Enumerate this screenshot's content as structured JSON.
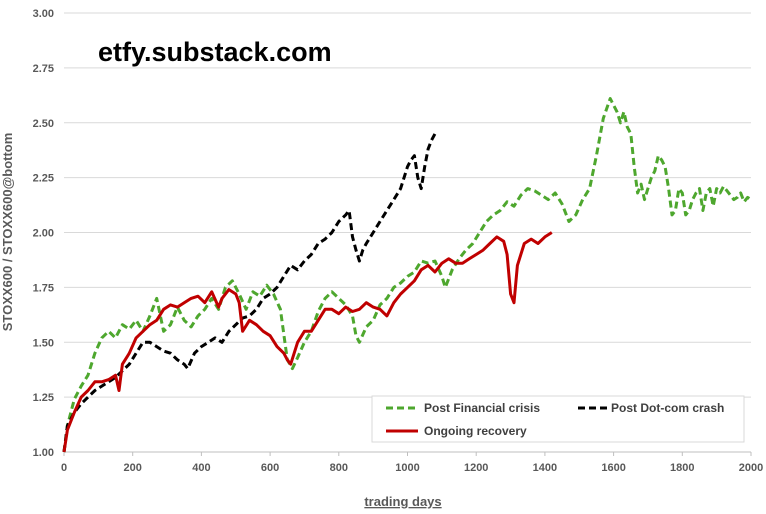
{
  "chart_data": {
    "type": "line",
    "watermark": "etfy.substack.com",
    "xlabel": "trading days",
    "ylabel": "STOXX600 / STOXX600@bottom",
    "xlim": [
      0,
      2000
    ],
    "ylim": [
      1.0,
      3.0
    ],
    "x_ticks": [
      "0",
      "200",
      "400",
      "600",
      "800",
      "1000",
      "1200",
      "1400",
      "1600",
      "1800",
      "2000"
    ],
    "y_ticks": [
      "1.00",
      "1.25",
      "1.50",
      "1.75",
      "2.00",
      "2.25",
      "2.50",
      "2.75",
      "3.00"
    ],
    "grid": "horizontal",
    "legend_position": "bottom-right",
    "series": [
      {
        "name": "Post Financial crisis",
        "color": "#4ea72e",
        "style": "dashed",
        "points": [
          [
            0,
            1.0
          ],
          [
            10,
            1.12
          ],
          [
            30,
            1.24
          ],
          [
            50,
            1.3
          ],
          [
            70,
            1.35
          ],
          [
            90,
            1.45
          ],
          [
            110,
            1.52
          ],
          [
            130,
            1.55
          ],
          [
            150,
            1.52
          ],
          [
            170,
            1.58
          ],
          [
            190,
            1.56
          ],
          [
            210,
            1.6
          ],
          [
            230,
            1.55
          ],
          [
            250,
            1.62
          ],
          [
            270,
            1.7
          ],
          [
            290,
            1.55
          ],
          [
            310,
            1.58
          ],
          [
            330,
            1.66
          ],
          [
            350,
            1.6
          ],
          [
            370,
            1.57
          ],
          [
            390,
            1.62
          ],
          [
            410,
            1.65
          ],
          [
            430,
            1.7
          ],
          [
            450,
            1.65
          ],
          [
            470,
            1.75
          ],
          [
            490,
            1.78
          ],
          [
            510,
            1.72
          ],
          [
            530,
            1.65
          ],
          [
            550,
            1.73
          ],
          [
            570,
            1.71
          ],
          [
            590,
            1.76
          ],
          [
            610,
            1.72
          ],
          [
            630,
            1.65
          ],
          [
            650,
            1.42
          ],
          [
            665,
            1.38
          ],
          [
            680,
            1.43
          ],
          [
            700,
            1.5
          ],
          [
            720,
            1.55
          ],
          [
            740,
            1.64
          ],
          [
            760,
            1.7
          ],
          [
            780,
            1.73
          ],
          [
            800,
            1.7
          ],
          [
            820,
            1.67
          ],
          [
            840,
            1.62
          ],
          [
            850,
            1.53
          ],
          [
            860,
            1.5
          ],
          [
            880,
            1.57
          ],
          [
            900,
            1.6
          ],
          [
            920,
            1.67
          ],
          [
            940,
            1.7
          ],
          [
            960,
            1.75
          ],
          [
            980,
            1.77
          ],
          [
            1000,
            1.8
          ],
          [
            1020,
            1.82
          ],
          [
            1040,
            1.87
          ],
          [
            1060,
            1.86
          ],
          [
            1080,
            1.87
          ],
          [
            1100,
            1.8
          ],
          [
            1110,
            1.75
          ],
          [
            1130,
            1.83
          ],
          [
            1150,
            1.88
          ],
          [
            1170,
            1.92
          ],
          [
            1190,
            1.95
          ],
          [
            1210,
            2.0
          ],
          [
            1230,
            2.05
          ],
          [
            1250,
            2.08
          ],
          [
            1270,
            2.1
          ],
          [
            1290,
            2.14
          ],
          [
            1310,
            2.12
          ],
          [
            1330,
            2.17
          ],
          [
            1350,
            2.2
          ],
          [
            1370,
            2.19
          ],
          [
            1390,
            2.17
          ],
          [
            1410,
            2.15
          ],
          [
            1430,
            2.18
          ],
          [
            1450,
            2.13
          ],
          [
            1470,
            2.05
          ],
          [
            1490,
            2.08
          ],
          [
            1510,
            2.15
          ],
          [
            1530,
            2.2
          ],
          [
            1550,
            2.35
          ],
          [
            1570,
            2.52
          ],
          [
            1590,
            2.61
          ],
          [
            1600,
            2.58
          ],
          [
            1610,
            2.55
          ],
          [
            1620,
            2.5
          ],
          [
            1630,
            2.55
          ],
          [
            1640,
            2.48
          ],
          [
            1650,
            2.45
          ],
          [
            1660,
            2.3
          ],
          [
            1670,
            2.18
          ],
          [
            1680,
            2.22
          ],
          [
            1690,
            2.15
          ],
          [
            1700,
            2.2
          ],
          [
            1710,
            2.25
          ],
          [
            1720,
            2.28
          ],
          [
            1730,
            2.35
          ],
          [
            1740,
            2.33
          ],
          [
            1750,
            2.3
          ],
          [
            1760,
            2.2
          ],
          [
            1770,
            2.08
          ],
          [
            1780,
            2.1
          ],
          [
            1790,
            2.2
          ],
          [
            1800,
            2.18
          ],
          [
            1810,
            2.08
          ],
          [
            1820,
            2.1
          ],
          [
            1830,
            2.15
          ],
          [
            1840,
            2.18
          ],
          [
            1850,
            2.2
          ],
          [
            1860,
            2.1
          ],
          [
            1870,
            2.18
          ],
          [
            1880,
            2.2
          ],
          [
            1890,
            2.12
          ],
          [
            1900,
            2.2
          ],
          [
            1910,
            2.18
          ],
          [
            1920,
            2.21
          ],
          [
            1930,
            2.19
          ],
          [
            1940,
            2.17
          ],
          [
            1950,
            2.15
          ],
          [
            1960,
            2.16
          ],
          [
            1970,
            2.18
          ],
          [
            1980,
            2.14
          ],
          [
            1990,
            2.16
          ],
          [
            2000,
            2.15
          ]
        ]
      },
      {
        "name": "Post Dot-com crash",
        "color": "#000000",
        "style": "dashed",
        "points": [
          [
            0,
            1.0
          ],
          [
            10,
            1.12
          ],
          [
            30,
            1.18
          ],
          [
            50,
            1.22
          ],
          [
            70,
            1.25
          ],
          [
            90,
            1.28
          ],
          [
            110,
            1.3
          ],
          [
            130,
            1.32
          ],
          [
            150,
            1.34
          ],
          [
            170,
            1.37
          ],
          [
            190,
            1.4
          ],
          [
            210,
            1.45
          ],
          [
            230,
            1.5
          ],
          [
            250,
            1.5
          ],
          [
            270,
            1.48
          ],
          [
            290,
            1.46
          ],
          [
            310,
            1.45
          ],
          [
            330,
            1.42
          ],
          [
            350,
            1.4
          ],
          [
            360,
            1.38
          ],
          [
            380,
            1.45
          ],
          [
            400,
            1.48
          ],
          [
            420,
            1.5
          ],
          [
            440,
            1.52
          ],
          [
            460,
            1.5
          ],
          [
            480,
            1.55
          ],
          [
            500,
            1.58
          ],
          [
            520,
            1.61
          ],
          [
            540,
            1.62
          ],
          [
            560,
            1.65
          ],
          [
            580,
            1.7
          ],
          [
            600,
            1.72
          ],
          [
            620,
            1.75
          ],
          [
            640,
            1.8
          ],
          [
            660,
            1.85
          ],
          [
            680,
            1.83
          ],
          [
            700,
            1.87
          ],
          [
            720,
            1.9
          ],
          [
            740,
            1.95
          ],
          [
            760,
            1.97
          ],
          [
            780,
            2.0
          ],
          [
            800,
            2.05
          ],
          [
            820,
            2.08
          ],
          [
            830,
            2.1
          ],
          [
            840,
            1.98
          ],
          [
            850,
            1.92
          ],
          [
            860,
            1.87
          ],
          [
            870,
            1.92
          ],
          [
            880,
            1.95
          ],
          [
            900,
            2.0
          ],
          [
            920,
            2.05
          ],
          [
            940,
            2.1
          ],
          [
            960,
            2.15
          ],
          [
            980,
            2.2
          ],
          [
            1000,
            2.3
          ],
          [
            1010,
            2.33
          ],
          [
            1020,
            2.35
          ],
          [
            1030,
            2.25
          ],
          [
            1040,
            2.2
          ],
          [
            1050,
            2.3
          ],
          [
            1060,
            2.38
          ],
          [
            1070,
            2.42
          ],
          [
            1080,
            2.45
          ]
        ]
      },
      {
        "name": "Ongoing recovery",
        "color": "#c00000",
        "style": "solid",
        "points": [
          [
            0,
            1.0
          ],
          [
            10,
            1.1
          ],
          [
            30,
            1.18
          ],
          [
            50,
            1.25
          ],
          [
            70,
            1.28
          ],
          [
            90,
            1.32
          ],
          [
            110,
            1.32
          ],
          [
            130,
            1.33
          ],
          [
            150,
            1.35
          ],
          [
            160,
            1.28
          ],
          [
            170,
            1.4
          ],
          [
            190,
            1.45
          ],
          [
            210,
            1.52
          ],
          [
            230,
            1.55
          ],
          [
            250,
            1.58
          ],
          [
            270,
            1.6
          ],
          [
            290,
            1.65
          ],
          [
            310,
            1.67
          ],
          [
            330,
            1.66
          ],
          [
            350,
            1.68
          ],
          [
            370,
            1.7
          ],
          [
            390,
            1.71
          ],
          [
            410,
            1.68
          ],
          [
            430,
            1.73
          ],
          [
            450,
            1.66
          ],
          [
            460,
            1.7
          ],
          [
            480,
            1.74
          ],
          [
            500,
            1.72
          ],
          [
            510,
            1.68
          ],
          [
            520,
            1.55
          ],
          [
            540,
            1.6
          ],
          [
            560,
            1.58
          ],
          [
            580,
            1.55
          ],
          [
            600,
            1.53
          ],
          [
            620,
            1.48
          ],
          [
            640,
            1.45
          ],
          [
            650,
            1.42
          ],
          [
            660,
            1.4
          ],
          [
            680,
            1.5
          ],
          [
            700,
            1.55
          ],
          [
            720,
            1.55
          ],
          [
            740,
            1.6
          ],
          [
            760,
            1.65
          ],
          [
            780,
            1.65
          ],
          [
            800,
            1.63
          ],
          [
            820,
            1.66
          ],
          [
            840,
            1.64
          ],
          [
            860,
            1.65
          ],
          [
            880,
            1.68
          ],
          [
            900,
            1.66
          ],
          [
            920,
            1.65
          ],
          [
            940,
            1.62
          ],
          [
            960,
            1.68
          ],
          [
            980,
            1.72
          ],
          [
            1000,
            1.75
          ],
          [
            1020,
            1.78
          ],
          [
            1040,
            1.83
          ],
          [
            1060,
            1.85
          ],
          [
            1080,
            1.82
          ],
          [
            1100,
            1.86
          ],
          [
            1120,
            1.88
          ],
          [
            1140,
            1.86
          ],
          [
            1160,
            1.86
          ],
          [
            1180,
            1.88
          ],
          [
            1200,
            1.9
          ],
          [
            1220,
            1.92
          ],
          [
            1240,
            1.95
          ],
          [
            1260,
            1.98
          ],
          [
            1280,
            1.96
          ],
          [
            1290,
            1.9
          ],
          [
            1300,
            1.72
          ],
          [
            1310,
            1.68
          ],
          [
            1320,
            1.85
          ],
          [
            1340,
            1.95
          ],
          [
            1360,
            1.97
          ],
          [
            1380,
            1.95
          ],
          [
            1400,
            1.98
          ],
          [
            1420,
            2.0
          ]
        ]
      }
    ]
  }
}
